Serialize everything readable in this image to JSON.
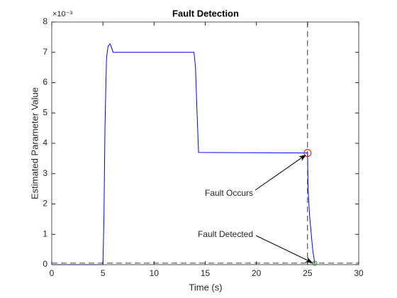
{
  "chart_data": {
    "type": "line",
    "title": "Fault Detection",
    "xlabel": "Time (s)",
    "ylabel": "Estimated Parameter Value",
    "y_multiplier": "×10⁻³",
    "x": [
      0,
      5,
      5.1,
      5.2,
      5.35,
      5.5,
      5.7,
      5.85,
      6,
      13.9,
      14.05,
      14.2,
      14.35,
      25,
      25.05,
      25.2,
      25.5,
      25.7
    ],
    "values": [
      0,
      0,
      1.5,
      4.5,
      6.8,
      7.2,
      7.28,
      7.15,
      7.0,
      7.0,
      6.5,
      5.0,
      3.7,
      3.68,
      2.5,
      1.6,
      0.5,
      0.05
    ],
    "color": "#0000ff",
    "fault_time": 25,
    "threshold": 0.05,
    "fault_point": {
      "x": 25,
      "y": 3.68,
      "color": "#ff0000"
    },
    "detection_point": {
      "x": 25.7,
      "y": 0.05,
      "color": "#00aa00"
    },
    "annotations": [
      "Fault Occurs",
      "Fault Detected"
    ],
    "xlim": [
      0,
      30
    ],
    "xticks": [
      0,
      5,
      10,
      15,
      20,
      25,
      30
    ],
    "ylim": [
      0,
      8
    ],
    "yticks": [
      0,
      1,
      2,
      3,
      4,
      5,
      6,
      7,
      8
    ]
  }
}
